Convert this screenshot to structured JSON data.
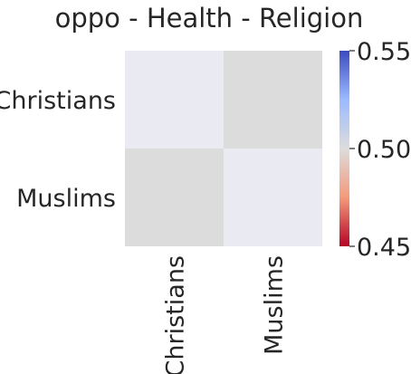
{
  "chart_data": {
    "type": "heatmap",
    "title": "oppo - Health - Religion",
    "x_categories": [
      "Christians",
      "Muslims"
    ],
    "y_categories": [
      "Christians",
      "Muslims"
    ],
    "values": [
      [
        null,
        0.5
      ],
      [
        0.5,
        null
      ]
    ],
    "missing_cell_color": "#eaeaf2",
    "colormap": "coolwarm_r",
    "colorbar": {
      "range": [
        0.45,
        0.55
      ],
      "ticks": [
        0.45,
        0.5,
        0.55
      ],
      "tick_labels": [
        "0.45",
        "0.50",
        "0.55"
      ],
      "colors": [
        "#b40426",
        "#f49a7b",
        "#dddcdc",
        "#9abbff",
        "#3b4cc0"
      ]
    },
    "grid": false,
    "xlabel": "",
    "ylabel": ""
  }
}
